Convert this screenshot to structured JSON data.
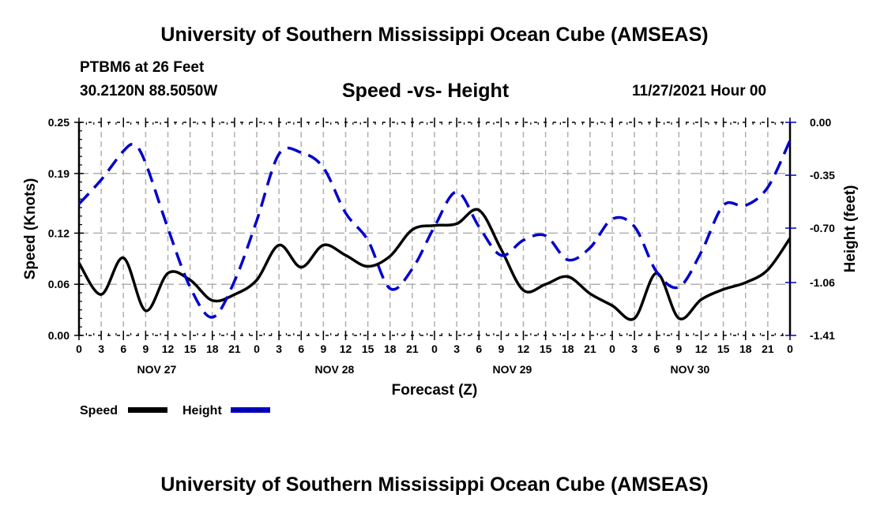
{
  "header": {
    "main_title": "University of Southern Mississippi Ocean Cube (AMSEAS)",
    "station": "PTBM6 at 26 Feet",
    "coords": "30.2120N  88.5050W",
    "subtitle": "Speed -vs- Height",
    "datetime": "11/27/2021 Hour 00"
  },
  "footer": {
    "bottom_title": "University of Southern Mississippi Ocean Cube (AMSEAS)"
  },
  "colors": {
    "speed": "#000000",
    "height": "#0000cc",
    "grid": "#b0b0b0"
  },
  "chart_data": {
    "type": "line",
    "title": "Speed -vs- Height",
    "xlabel": "Forecast (Z)",
    "ylabel": "Speed (Knots)",
    "y2label": "Height (feet)",
    "xlim_hours": [
      0,
      96
    ],
    "ylim": [
      0.0,
      0.25
    ],
    "y2lim": [
      -1.41,
      0.0
    ],
    "grid": true,
    "legend_position": "bottom-left",
    "x_tick_hours": [
      0,
      3,
      6,
      9,
      12,
      15,
      18,
      21,
      24,
      27,
      30,
      33,
      36,
      39,
      42,
      45,
      48,
      51,
      54,
      57,
      60,
      63,
      66,
      69,
      72,
      75,
      78,
      81,
      84,
      87,
      90,
      93,
      96
    ],
    "x_tick_labels": [
      "0",
      "3",
      "6",
      "9",
      "12",
      "15",
      "18",
      "21",
      "0",
      "3",
      "6",
      "9",
      "12",
      "15",
      "18",
      "21",
      "0",
      "3",
      "6",
      "9",
      "12",
      "15",
      "18",
      "21",
      "0",
      "3",
      "6",
      "9",
      "12",
      "15",
      "18",
      "21",
      "0"
    ],
    "day_labels": [
      {
        "label": "NOV 27",
        "hour": 10.5
      },
      {
        "label": "NOV 28",
        "hour": 34.5
      },
      {
        "label": "NOV 29",
        "hour": 58.5
      },
      {
        "label": "NOV 30",
        "hour": 82.5
      }
    ],
    "y_ticks": [
      0.0,
      0.06,
      0.12,
      0.19,
      0.25
    ],
    "y_tick_labels": [
      "0.00",
      "0.06",
      "0.12",
      "0.19",
      "0.25"
    ],
    "y2_ticks": [
      0.0,
      -0.35,
      -0.7,
      -1.06,
      -1.41
    ],
    "y2_tick_labels": [
      "0.00",
      "-0.35",
      "-0.70",
      "-1.06",
      "-1.41"
    ],
    "series": [
      {
        "name": "Speed",
        "axis": "left",
        "style": "solid",
        "x": [
          0,
          3,
          6,
          9,
          12,
          15,
          18,
          21,
          24,
          27,
          30,
          33,
          36,
          39,
          42,
          45,
          48,
          51,
          54,
          57,
          60,
          63,
          66,
          69,
          72,
          75,
          78,
          81,
          84,
          87,
          90,
          93,
          96
        ],
        "values": [
          0.085,
          0.048,
          0.091,
          0.029,
          0.073,
          0.065,
          0.041,
          0.048,
          0.065,
          0.106,
          0.08,
          0.106,
          0.094,
          0.081,
          0.093,
          0.124,
          0.129,
          0.131,
          0.147,
          0.101,
          0.053,
          0.06,
          0.069,
          0.049,
          0.035,
          0.02,
          0.073,
          0.02,
          0.042,
          0.054,
          0.062,
          0.077,
          0.114
        ]
      },
      {
        "name": "Height",
        "axis": "right",
        "style": "dashed",
        "x": [
          0,
          3,
          6,
          7.5,
          9,
          12,
          15,
          18,
          21,
          24,
          27,
          30,
          33,
          36,
          39,
          42,
          45,
          48,
          51,
          54,
          57,
          60,
          63,
          66,
          69,
          72,
          75,
          78,
          81,
          84,
          87,
          90,
          93,
          96
        ],
        "values": [
          -0.54,
          -0.38,
          -0.19,
          -0.15,
          -0.27,
          -0.7,
          -1.09,
          -1.29,
          -1.05,
          -0.65,
          -0.21,
          -0.2,
          -0.3,
          -0.6,
          -0.78,
          -1.1,
          -0.97,
          -0.69,
          -0.46,
          -0.69,
          -0.88,
          -0.78,
          -0.75,
          -0.91,
          -0.83,
          -0.64,
          -0.69,
          -0.99,
          -1.09,
          -0.86,
          -0.55,
          -0.55,
          -0.43,
          -0.12
        ]
      }
    ],
    "legend": [
      {
        "label": "Speed",
        "style": "solid"
      },
      {
        "label": "Height",
        "style": "dashed"
      }
    ]
  }
}
